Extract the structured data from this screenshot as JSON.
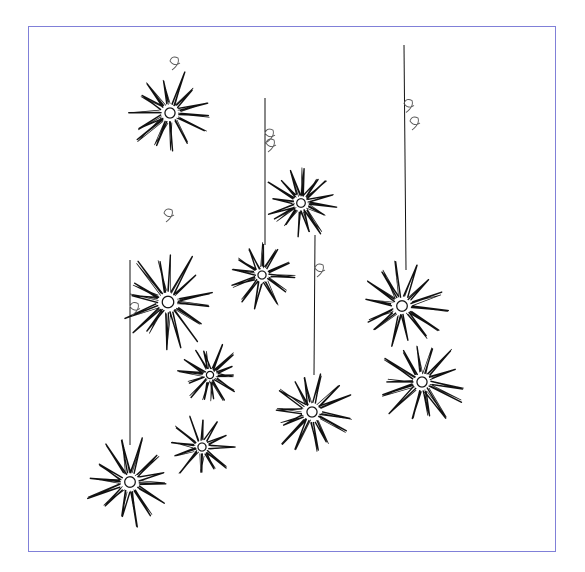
{
  "frame": {
    "border_color": "#8080d8",
    "background": "#ffffff"
  },
  "ink_color": "#111111",
  "ornaments": [
    {
      "name": "star-top-left",
      "rays": 14,
      "hanging": false
    },
    {
      "name": "star-center-small",
      "rays": 12,
      "hanging": true
    },
    {
      "name": "star-center-top-scribble",
      "rays": 16,
      "hanging": false
    },
    {
      "name": "star-left-large",
      "rays": 16,
      "hanging": true
    },
    {
      "name": "star-left-middle",
      "rays": 14,
      "hanging": false
    },
    {
      "name": "star-left-lower",
      "rays": 12,
      "hanging": false
    },
    {
      "name": "star-bottom-left",
      "rays": 14,
      "hanging": true
    },
    {
      "name": "star-center-bottom",
      "rays": 14,
      "hanging": true
    },
    {
      "name": "star-right-upper",
      "rays": 14,
      "hanging": true
    },
    {
      "name": "star-right-lower",
      "rays": 14,
      "hanging": false
    }
  ]
}
